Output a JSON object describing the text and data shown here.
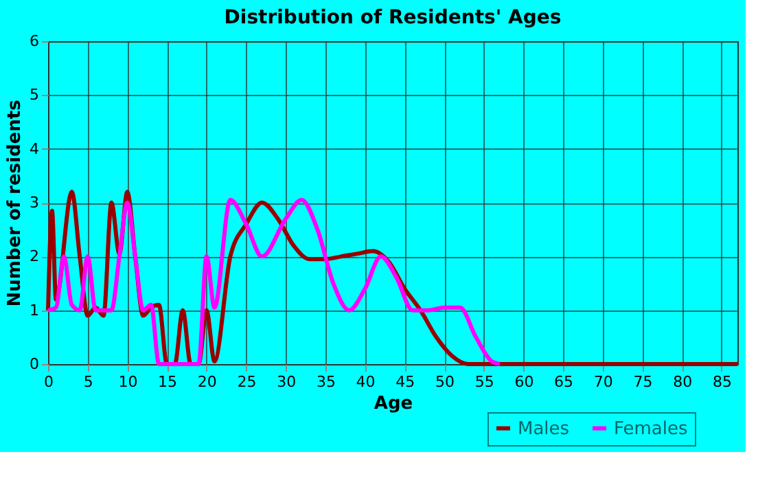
{
  "chart_data": {
    "type": "line",
    "title": "Distribution of Residents' Ages",
    "xlabel": "Age",
    "ylabel": "Number of residents",
    "xlim": [
      0,
      87
    ],
    "xticks": [
      0,
      5,
      10,
      15,
      20,
      25,
      30,
      35,
      40,
      45,
      50,
      55,
      60,
      65,
      70,
      75,
      80,
      85
    ],
    "ylim": [
      0,
      6
    ],
    "yticks": [
      0,
      1,
      2,
      3,
      4,
      5,
      6
    ],
    "grid": true,
    "legend": "bottom right",
    "line_style": "solid",
    "marker": "none",
    "series": [
      {
        "name": "Males",
        "color": "#990000",
        "x": [
          0,
          0.5,
          1,
          3,
          4,
          5,
          6,
          7,
          8,
          9,
          10,
          11,
          12,
          13,
          14,
          15,
          16,
          17,
          18,
          19,
          20,
          21,
          23,
          25,
          27,
          29,
          31,
          33,
          35,
          37,
          39,
          41,
          43,
          45,
          47,
          49,
          51,
          53,
          60,
          87
        ],
        "values": [
          1,
          2.85,
          1.2,
          3.2,
          2,
          0.9,
          1.05,
          0.9,
          3.0,
          2.05,
          3.2,
          2,
          0.9,
          1.05,
          1.1,
          0,
          0,
          1.0,
          0,
          0,
          1.0,
          0.05,
          2.0,
          2.6,
          3.0,
          2.7,
          2.2,
          1.95,
          1.95,
          2.0,
          2.05,
          2.1,
          1.9,
          1.4,
          1.0,
          0.5,
          0.15,
          0,
          0,
          0
        ]
      },
      {
        "name": "Females",
        "color": "#ff00ff",
        "x": [
          0,
          1,
          2,
          3,
          4,
          5,
          6,
          7,
          8,
          9,
          10,
          11,
          12,
          13,
          14,
          15,
          19,
          20,
          21,
          23,
          25,
          27,
          30,
          32,
          34,
          36,
          38,
          40,
          42,
          44,
          46,
          48,
          50,
          52,
          54,
          56,
          57
        ],
        "values": [
          1,
          1.05,
          2.0,
          1.1,
          1,
          2.0,
          1.0,
          1.0,
          1.0,
          2,
          3.0,
          2,
          1.0,
          1.1,
          0,
          0,
          0,
          2.0,
          1.05,
          3.05,
          2.6,
          2.0,
          2.7,
          3.05,
          2.5,
          1.5,
          1.0,
          1.4,
          2.0,
          1.6,
          1.0,
          1.0,
          1.05,
          1.05,
          0.5,
          0.05,
          0
        ]
      }
    ]
  }
}
